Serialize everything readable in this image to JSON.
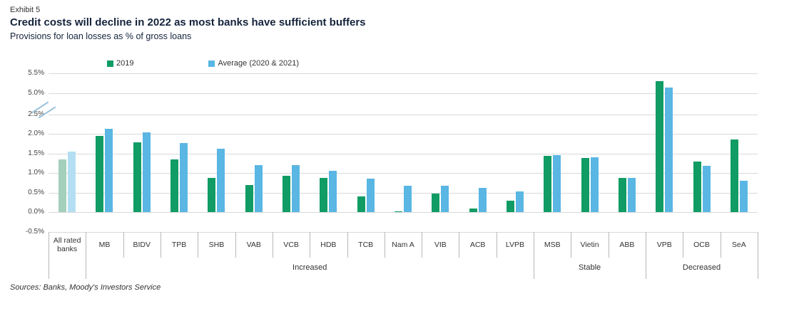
{
  "header": {
    "exhibit": "Exhibit 5"
  },
  "footer": {
    "sources": "Sources: Banks, Moody's Investors Service"
  },
  "chart_data": {
    "type": "bar",
    "title": "Credit costs will decline in 2022 as most banks have sufficient buffers",
    "subtitle": "Provisions for loan losses as % of gross loans",
    "ylabel": "Provisions for loan losses as % of gross loans",
    "categories": [
      "All rated banks",
      "MB",
      "BIDV",
      "TPB",
      "SHB",
      "VAB",
      "VCB",
      "HDB",
      "TCB",
      "Nam A",
      "VIB",
      "ACB",
      "LVPB",
      "MSB",
      "Vietin",
      "ABB",
      "VPB",
      "OCB",
      "SeA"
    ],
    "series": [
      {
        "name": "2019",
        "color": "#109c64",
        "muted_color": "#a3cfbb",
        "values": [
          1.35,
          1.95,
          1.78,
          1.35,
          0.88,
          0.7,
          0.92,
          0.87,
          0.4,
          0.02,
          0.48,
          0.1,
          0.3,
          1.43,
          1.38,
          0.87,
          5.3,
          1.3,
          1.85
        ]
      },
      {
        "name": "Average (2020 & 2021)",
        "color": "#5ab6e3",
        "muted_color": "#b4dff2",
        "values": [
          1.55,
          2.12,
          2.04,
          1.77,
          1.62,
          1.2,
          1.2,
          1.05,
          0.85,
          0.68,
          0.68,
          0.62,
          0.52,
          1.45,
          1.4,
          0.88,
          5.15,
          1.18,
          0.8
        ]
      }
    ],
    "muted_category_index": 0,
    "y_ticks": [
      -0.5,
      0.0,
      0.5,
      1.0,
      1.5,
      2.0,
      2.5,
      5.0,
      5.5
    ],
    "y_tick_format": "percent",
    "axis_break": {
      "between": [
        2.5,
        5.0
      ]
    },
    "grid": "horizontal",
    "legend_position": "top",
    "groups": [
      {
        "label": "Increased",
        "from": 1,
        "to": 12
      },
      {
        "label": "Stable",
        "from": 13,
        "to": 15
      },
      {
        "label": "Decreased",
        "from": 16,
        "to": 18
      }
    ]
  }
}
